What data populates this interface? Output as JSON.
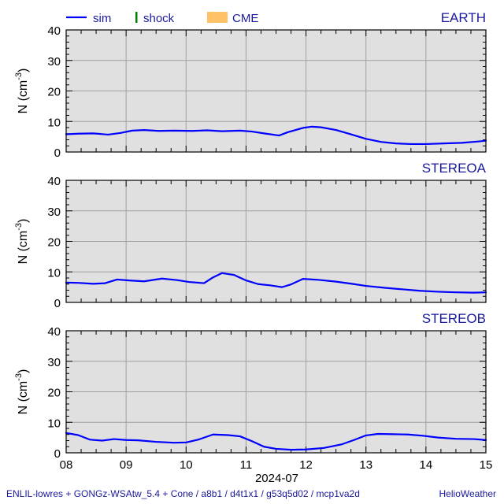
{
  "legend": [
    {
      "name": "sim",
      "color": "#0000ff",
      "kind": "line"
    },
    {
      "name": "shock",
      "color": "#008000",
      "kind": "tick"
    },
    {
      "name": "CME",
      "color": "#ffc266",
      "kind": "box"
    }
  ],
  "footer": {
    "left": "ENLIL-lowres + GONGz-WSAtw_5.4 + Cone / a8b1 / d4t1x1 / g53q5d02 / mcp1va2d",
    "right": "HelioWeather"
  },
  "chart_data": [
    {
      "type": "line",
      "title": "EARTH",
      "ylabel": "N (cm-3)",
      "ylabel_text": "N (cm",
      "ylabel_sup": "-3",
      "ylabel_end": ")",
      "ylim": [
        0,
        40
      ],
      "yticks": [
        "0",
        "10",
        "20",
        "30",
        "40"
      ],
      "xlim": [
        8,
        15
      ],
      "grid": true,
      "series": [
        {
          "color": "#0000ff",
          "x": [
            8.0,
            8.2,
            8.45,
            8.7,
            8.9,
            9.1,
            9.3,
            9.55,
            9.8,
            10.1,
            10.35,
            10.6,
            10.9,
            11.1,
            11.3,
            11.55,
            11.7,
            11.95,
            12.1,
            12.25,
            12.5,
            12.75,
            13.0,
            13.25,
            13.5,
            13.75,
            14.0,
            14.3,
            14.6,
            14.85,
            15.0
          ],
          "y": [
            5.8,
            6.0,
            6.1,
            5.7,
            6.2,
            7.0,
            7.2,
            6.9,
            7.0,
            6.9,
            7.1,
            6.8,
            7.0,
            6.7,
            6.1,
            5.4,
            6.5,
            7.9,
            8.3,
            8.1,
            7.2,
            5.8,
            4.3,
            3.3,
            2.8,
            2.6,
            2.6,
            2.8,
            3.0,
            3.4,
            3.7
          ]
        }
      ]
    },
    {
      "type": "line",
      "title": "STEREOA",
      "ylabel": "N (cm-3)",
      "ylabel_text": "N (cm",
      "ylabel_sup": "-3",
      "ylabel_end": ")",
      "ylim": [
        0,
        40
      ],
      "yticks": [
        "0",
        "10",
        "20",
        "30",
        "40"
      ],
      "xlim": [
        8,
        15
      ],
      "grid": true,
      "series": [
        {
          "color": "#0000ff",
          "x": [
            8.0,
            8.2,
            8.45,
            8.65,
            8.85,
            9.05,
            9.3,
            9.6,
            9.85,
            10.05,
            10.3,
            10.45,
            10.6,
            10.8,
            11.0,
            11.2,
            11.4,
            11.6,
            11.75,
            11.95,
            12.2,
            12.5,
            12.8,
            13.0,
            13.3,
            13.6,
            13.9,
            14.2,
            14.5,
            14.8,
            15.0
          ],
          "y": [
            6.5,
            6.4,
            6.1,
            6.3,
            7.5,
            7.2,
            6.9,
            7.8,
            7.3,
            6.7,
            6.3,
            8.2,
            9.6,
            9.0,
            7.2,
            6.0,
            5.6,
            5.0,
            5.9,
            7.7,
            7.4,
            6.8,
            6.0,
            5.4,
            4.8,
            4.3,
            3.8,
            3.5,
            3.3,
            3.2,
            3.3
          ]
        }
      ]
    },
    {
      "type": "line",
      "title": "STEREOB",
      "ylabel": "N (cm-3)",
      "ylabel_text": "N (cm",
      "ylabel_sup": "-3",
      "ylabel_end": ")",
      "ylim": [
        0,
        40
      ],
      "yticks": [
        "0",
        "10",
        "20",
        "30",
        "40"
      ],
      "xlim": [
        8,
        15
      ],
      "xticks": [
        "08",
        "09",
        "10",
        "11",
        "12",
        "13",
        "14",
        "15"
      ],
      "xlabel": "2024-07",
      "grid": true,
      "series": [
        {
          "color": "#0000ff",
          "x": [
            8.0,
            8.2,
            8.4,
            8.6,
            8.8,
            9.0,
            9.2,
            9.5,
            9.8,
            10.0,
            10.2,
            10.45,
            10.7,
            10.9,
            11.1,
            11.3,
            11.5,
            11.75,
            12.0,
            12.3,
            12.6,
            12.8,
            13.0,
            13.2,
            13.45,
            13.7,
            13.95,
            14.2,
            14.5,
            14.8,
            15.0
          ],
          "y": [
            6.5,
            5.8,
            4.3,
            4.0,
            4.5,
            4.2,
            4.1,
            3.6,
            3.3,
            3.4,
            4.3,
            6.0,
            5.8,
            5.4,
            3.8,
            2.0,
            1.3,
            1.0,
            1.1,
            1.6,
            2.8,
            4.2,
            5.7,
            6.2,
            6.1,
            6.0,
            5.6,
            5.0,
            4.6,
            4.5,
            4.2
          ]
        }
      ]
    }
  ]
}
